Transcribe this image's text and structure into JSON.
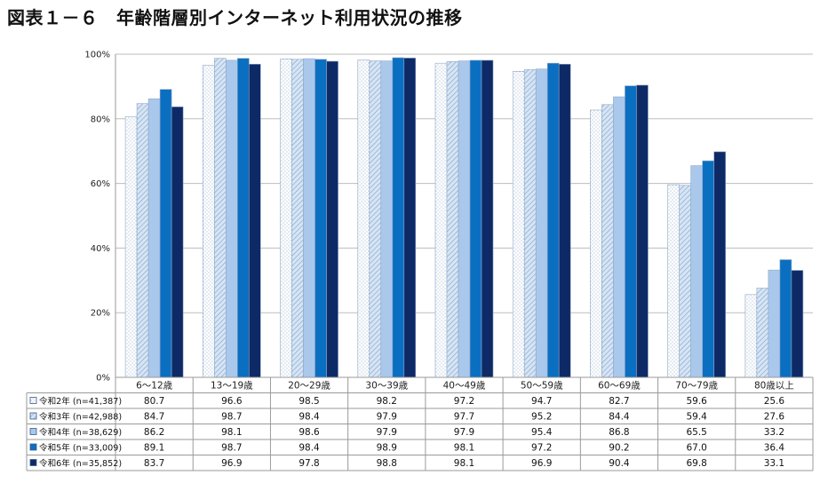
{
  "title": "図表１－６　年齢階層別インターネット利用状況の推移",
  "chart_data": {
    "type": "bar",
    "title": "図表１－６　年齢階層別インターネット利用状況の推移",
    "categories": [
      "6～12歳",
      "13～19歳",
      "20～29歳",
      "30～39歳",
      "40～49歳",
      "50～59歳",
      "60～69歳",
      "70～79歳",
      "80歳以上"
    ],
    "y_ticks": [
      "0%",
      "20%",
      "40%",
      "60%",
      "80%",
      "100%"
    ],
    "ylim": [
      0,
      100
    ],
    "grid": true,
    "legend": "table-below",
    "series": [
      {
        "name": "令和2年 (n=41,387)",
        "fill": "#ffffff",
        "pattern": "dots",
        "values": [
          80.7,
          96.6,
          98.5,
          98.2,
          97.2,
          94.7,
          82.7,
          59.6,
          25.6
        ]
      },
      {
        "name": "令和3年 (n=42,988)",
        "fill": "#c9dcf0",
        "pattern": "hatch",
        "values": [
          84.7,
          98.7,
          98.4,
          97.9,
          97.7,
          95.2,
          84.4,
          59.4,
          27.6
        ]
      },
      {
        "name": "令和4年 (n=38,629)",
        "fill": "#a9c8ec",
        "pattern": "none",
        "values": [
          86.2,
          98.1,
          98.6,
          97.9,
          97.9,
          95.4,
          86.8,
          65.5,
          33.2
        ]
      },
      {
        "name": "令和5年 (n=33,009)",
        "fill": "#0b6fc1",
        "pattern": "none",
        "values": [
          89.1,
          98.7,
          98.4,
          98.9,
          98.1,
          97.2,
          90.2,
          67.0,
          36.4
        ]
      },
      {
        "name": "令和6年 (n=35,852)",
        "fill": "#0d2a66",
        "pattern": "none",
        "values": [
          83.7,
          96.9,
          97.8,
          98.8,
          98.1,
          96.9,
          90.4,
          69.8,
          33.1
        ]
      }
    ]
  }
}
